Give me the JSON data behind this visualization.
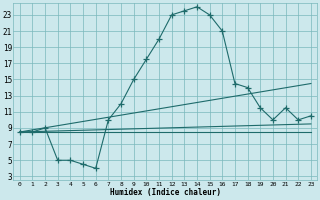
{
  "xlabel": "Humidex (Indice chaleur)",
  "bg_color": "#cce8ec",
  "grid_color": "#7ab8bc",
  "line_color": "#1e6b6b",
  "xlim": [
    -0.5,
    23.5
  ],
  "ylim": [
    2.5,
    24.5
  ],
  "yticks": [
    3,
    5,
    7,
    9,
    11,
    13,
    15,
    17,
    19,
    21,
    23
  ],
  "xticks": [
    0,
    1,
    2,
    3,
    4,
    5,
    6,
    7,
    8,
    9,
    10,
    11,
    12,
    13,
    14,
    15,
    16,
    17,
    18,
    19,
    20,
    21,
    22,
    23
  ],
  "line1_x": [
    0,
    1,
    2,
    3,
    4,
    5,
    6,
    7,
    8,
    9,
    10,
    11,
    12,
    13,
    14,
    15,
    16,
    17,
    18,
    19,
    20,
    21,
    22,
    23
  ],
  "line1_y": [
    8.5,
    8.5,
    9.0,
    5.0,
    5.0,
    4.5,
    4.0,
    10.0,
    12.0,
    15.0,
    17.5,
    20.0,
    23.0,
    23.5,
    24.0,
    23.0,
    21.0,
    14.5,
    14.0,
    11.5,
    10.0,
    11.5,
    10.0,
    10.5
  ],
  "line2_x": [
    0,
    23
  ],
  "line2_y": [
    8.5,
    14.5
  ],
  "line3_x": [
    0,
    23
  ],
  "line3_y": [
    8.5,
    9.5
  ],
  "line4_x": [
    0,
    23
  ],
  "line4_y": [
    8.5,
    8.5
  ],
  "linewidth": 0.8,
  "marker_size": 4.0
}
